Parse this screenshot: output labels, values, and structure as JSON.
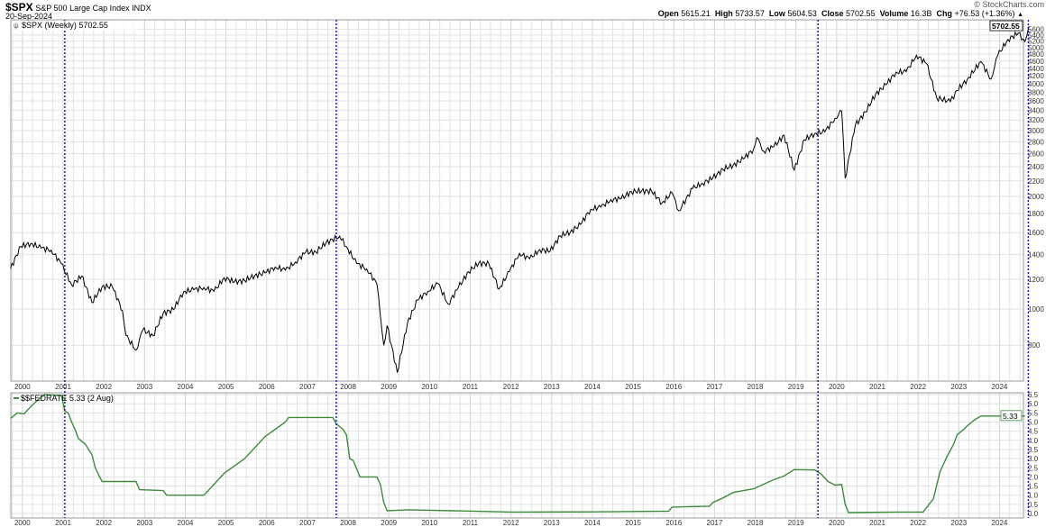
{
  "header": {
    "symbol": "$SPX",
    "name": "S&P 500 Large Cap Index",
    "exchange": "INDX",
    "date": "20-Sep-2024",
    "watermark": "© StockCharts.com",
    "open_label": "Open",
    "open": "5615.21",
    "high_label": "High",
    "high": "5733.57",
    "low_label": "Low",
    "low": "5604.53",
    "close_label": "Close",
    "close": "5702.55",
    "volume_label": "Volume",
    "volume": "16.3B",
    "chg_label": "Chg",
    "chg": "+76.53 (+1.36%)",
    "chg_arrow": "▲"
  },
  "colors": {
    "price": "#000000",
    "fedrate": "#3c8c3c",
    "marker": "#1c1ca8",
    "grid": "#e2e2e2"
  },
  "chart_data": [
    {
      "type": "line",
      "legend": "$SPX (Weekly) 5702.55",
      "legend_icon": "candle-icon",
      "yscale": "log",
      "ylim": [
        650,
        5900
      ],
      "yticks": [
        800,
        1000,
        1200,
        1400,
        1600,
        1800,
        2000,
        2200,
        2400,
        2600,
        2800,
        3000,
        3200,
        3400,
        3600,
        3800,
        4000,
        4200,
        4400,
        4600,
        4800,
        5000,
        5200,
        5400,
        5600
      ],
      "last_value_label": "5702.55",
      "xticks": [
        "2000",
        "2001",
        "2002",
        "2003",
        "2004",
        "2005",
        "2006",
        "2007",
        "2008",
        "2009",
        "2010",
        "2011",
        "2012",
        "2013",
        "2014",
        "2015",
        "2016",
        "2017",
        "2018",
        "2019",
        "2020",
        "2021",
        "2022",
        "2023",
        "2024"
      ],
      "grid": true,
      "series": [
        {
          "x": [
            "1999-09",
            "1999-12",
            "2000-03",
            "2000-06",
            "2000-09",
            "2000-12",
            "2001-03",
            "2001-06",
            "2001-09",
            "2001-12",
            "2002-03",
            "2002-06",
            "2002-07",
            "2002-10",
            "2002-12",
            "2003-03",
            "2003-06",
            "2003-09",
            "2003-12",
            "2004-03",
            "2004-06",
            "2004-09",
            "2004-12",
            "2005-03",
            "2005-06",
            "2005-09",
            "2005-12",
            "2006-03",
            "2006-06",
            "2006-09",
            "2006-12",
            "2007-03",
            "2007-06",
            "2007-10",
            "2007-12",
            "2008-03",
            "2008-06",
            "2008-09",
            "2008-11",
            "2008-12",
            "2009-03",
            "2009-06",
            "2009-09",
            "2009-12",
            "2010-03",
            "2010-06",
            "2010-09",
            "2010-12",
            "2011-03",
            "2011-06",
            "2011-09",
            "2011-12",
            "2012-03",
            "2012-06",
            "2012-09",
            "2012-12",
            "2013-03",
            "2013-06",
            "2013-09",
            "2013-12",
            "2014-03",
            "2014-06",
            "2014-09",
            "2014-12",
            "2015-03",
            "2015-06",
            "2015-09",
            "2015-12",
            "2016-02",
            "2016-06",
            "2016-09",
            "2016-12",
            "2017-03",
            "2017-06",
            "2017-09",
            "2017-12",
            "2018-01",
            "2018-03",
            "2018-06",
            "2018-09",
            "2018-12",
            "2019-03",
            "2019-06",
            "2019-09",
            "2019-12",
            "2020-02",
            "2020-03",
            "2020-06",
            "2020-09",
            "2020-12",
            "2021-03",
            "2021-06",
            "2021-09",
            "2021-12",
            "2022-03",
            "2022-06",
            "2022-10",
            "2022-12",
            "2023-03",
            "2023-07",
            "2023-10",
            "2023-12",
            "2024-03",
            "2024-06",
            "2024-08",
            "2024-09"
          ],
          "y": [
            1282,
            1469,
            1498,
            1455,
            1436,
            1320,
            1160,
            1224,
            1040,
            1148,
            1147,
            990,
            850,
            776,
            880,
            848,
            975,
            996,
            1112,
            1126,
            1141,
            1115,
            1212,
            1181,
            1191,
            1229,
            1248,
            1295,
            1270,
            1336,
            1418,
            1421,
            1503,
            1565,
            1468,
            1323,
            1280,
            1166,
            800,
            903,
            676,
            919,
            1057,
            1115,
            1169,
            1031,
            1141,
            1258,
            1326,
            1321,
            1131,
            1258,
            1408,
            1362,
            1441,
            1426,
            1569,
            1606,
            1682,
            1848,
            1872,
            1960,
            1972,
            2059,
            2068,
            2063,
            1920,
            2044,
            1829,
            2099,
            2168,
            2239,
            2363,
            2423,
            2519,
            2674,
            2872,
            2641,
            2718,
            2914,
            2351,
            2834,
            2942,
            2977,
            3231,
            3380,
            2237,
            3100,
            3363,
            3756,
            3973,
            4298,
            4308,
            4766,
            4530,
            3667,
            3585,
            3840,
            4109,
            4588,
            4117,
            4770,
            5254,
            5460,
            5186,
            5702.55
          ]
        }
      ]
    },
    {
      "type": "line",
      "legend": "$$FEDRATE 5.33 (2 Aug)",
      "ylim": [
        0,
        6.5
      ],
      "yticks": [
        "0.0",
        "0.5",
        "1.0",
        "1.5",
        "2.0",
        "2.5",
        "3.0",
        "3.5",
        "4.0",
        "4.5",
        "5.0",
        "5.5",
        "6.0",
        "6.5"
      ],
      "last_value_label": "5.33",
      "xticks": [
        "2000",
        "2001",
        "2002",
        "2003",
        "2004",
        "2005",
        "2006",
        "2007",
        "2008",
        "2009",
        "2010",
        "2011",
        "2012",
        "2013",
        "2014",
        "2015",
        "2016",
        "2017",
        "2018",
        "2019",
        "2020",
        "2021",
        "2022",
        "2023",
        "2024"
      ],
      "grid": true,
      "series": [
        {
          "x": [
            "1999-09",
            "1999-11",
            "2000-01",
            "2000-03",
            "2000-05",
            "2000-07",
            "2000-12",
            "2001-01",
            "2001-02",
            "2001-03",
            "2001-04",
            "2001-05",
            "2001-07",
            "2001-09",
            "2001-10",
            "2001-11",
            "2001-12",
            "2002-10",
            "2002-11",
            "2003-06",
            "2003-07",
            "2004-06",
            "2004-08",
            "2004-12",
            "2005-06",
            "2005-12",
            "2006-06",
            "2006-07",
            "2007-08",
            "2007-09",
            "2007-11",
            "2007-12",
            "2008-01",
            "2008-02",
            "2008-04",
            "2008-09",
            "2008-10",
            "2008-11",
            "2008-12",
            "2009-06",
            "2012-01",
            "2014-01",
            "2015-11",
            "2015-12",
            "2016-11",
            "2016-12",
            "2017-03",
            "2017-06",
            "2017-12",
            "2018-03",
            "2018-06",
            "2018-09",
            "2018-12",
            "2019-06",
            "2019-08",
            "2019-10",
            "2019-12",
            "2020-02",
            "2020-03",
            "2020-04",
            "2021-06",
            "2022-02",
            "2022-03",
            "2022-05",
            "2022-06",
            "2022-07",
            "2022-09",
            "2022-11",
            "2022-12",
            "2023-02",
            "2023-03",
            "2023-05",
            "2023-07",
            "2024-08"
          ],
          "y": [
            5.2,
            5.5,
            5.45,
            5.85,
            6.2,
            6.5,
            6.45,
            5.6,
            5.5,
            5.0,
            4.6,
            4.1,
            3.8,
            3.2,
            2.5,
            2.1,
            1.75,
            1.75,
            1.3,
            1.25,
            1.0,
            1.0,
            1.4,
            2.2,
            3.0,
            4.2,
            5.0,
            5.25,
            5.25,
            4.9,
            4.6,
            4.3,
            3.0,
            2.9,
            2.0,
            2.0,
            1.6,
            0.6,
            0.15,
            0.2,
            0.08,
            0.09,
            0.13,
            0.35,
            0.4,
            0.6,
            0.85,
            1.15,
            1.35,
            1.6,
            1.85,
            2.05,
            2.4,
            2.38,
            2.15,
            1.75,
            1.55,
            1.58,
            0.5,
            0.05,
            0.08,
            0.08,
            0.33,
            0.8,
            1.55,
            2.3,
            3.1,
            3.8,
            4.3,
            4.6,
            4.8,
            5.1,
            5.33,
            5.33
          ]
        }
      ]
    }
  ],
  "markers": [
    "2001-01",
    "2007-09",
    "2019-07",
    "2024-09"
  ]
}
